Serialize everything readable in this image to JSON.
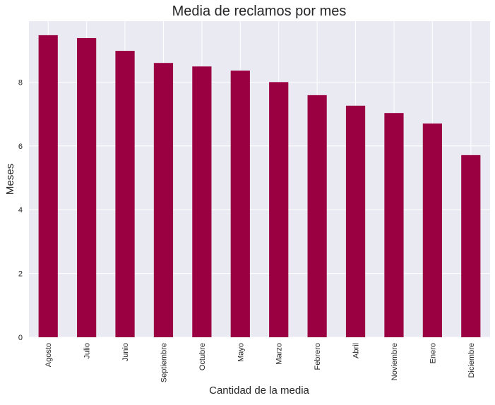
{
  "chart_data": {
    "type": "bar",
    "title": "Media de reclamos por mes",
    "xlabel": "Cantidad de la media",
    "ylabel": "Meses",
    "categories": [
      "Agosto",
      "Julio",
      "Junio",
      "Septiembre",
      "Octubre",
      "Mayo",
      "Marzo",
      "Febrero",
      "Abril",
      "Noviembre",
      "Enero",
      "Diciembre"
    ],
    "values": [
      9.47,
      9.38,
      8.98,
      8.6,
      8.49,
      8.36,
      8.0,
      7.59,
      7.26,
      7.03,
      6.7,
      5.71
    ],
    "ylim": [
      0,
      9.91
    ],
    "yticks": [
      0,
      2,
      4,
      6,
      8
    ],
    "grid": true,
    "bar_color": "#9a0041",
    "background_color": "#eaeaf2"
  }
}
